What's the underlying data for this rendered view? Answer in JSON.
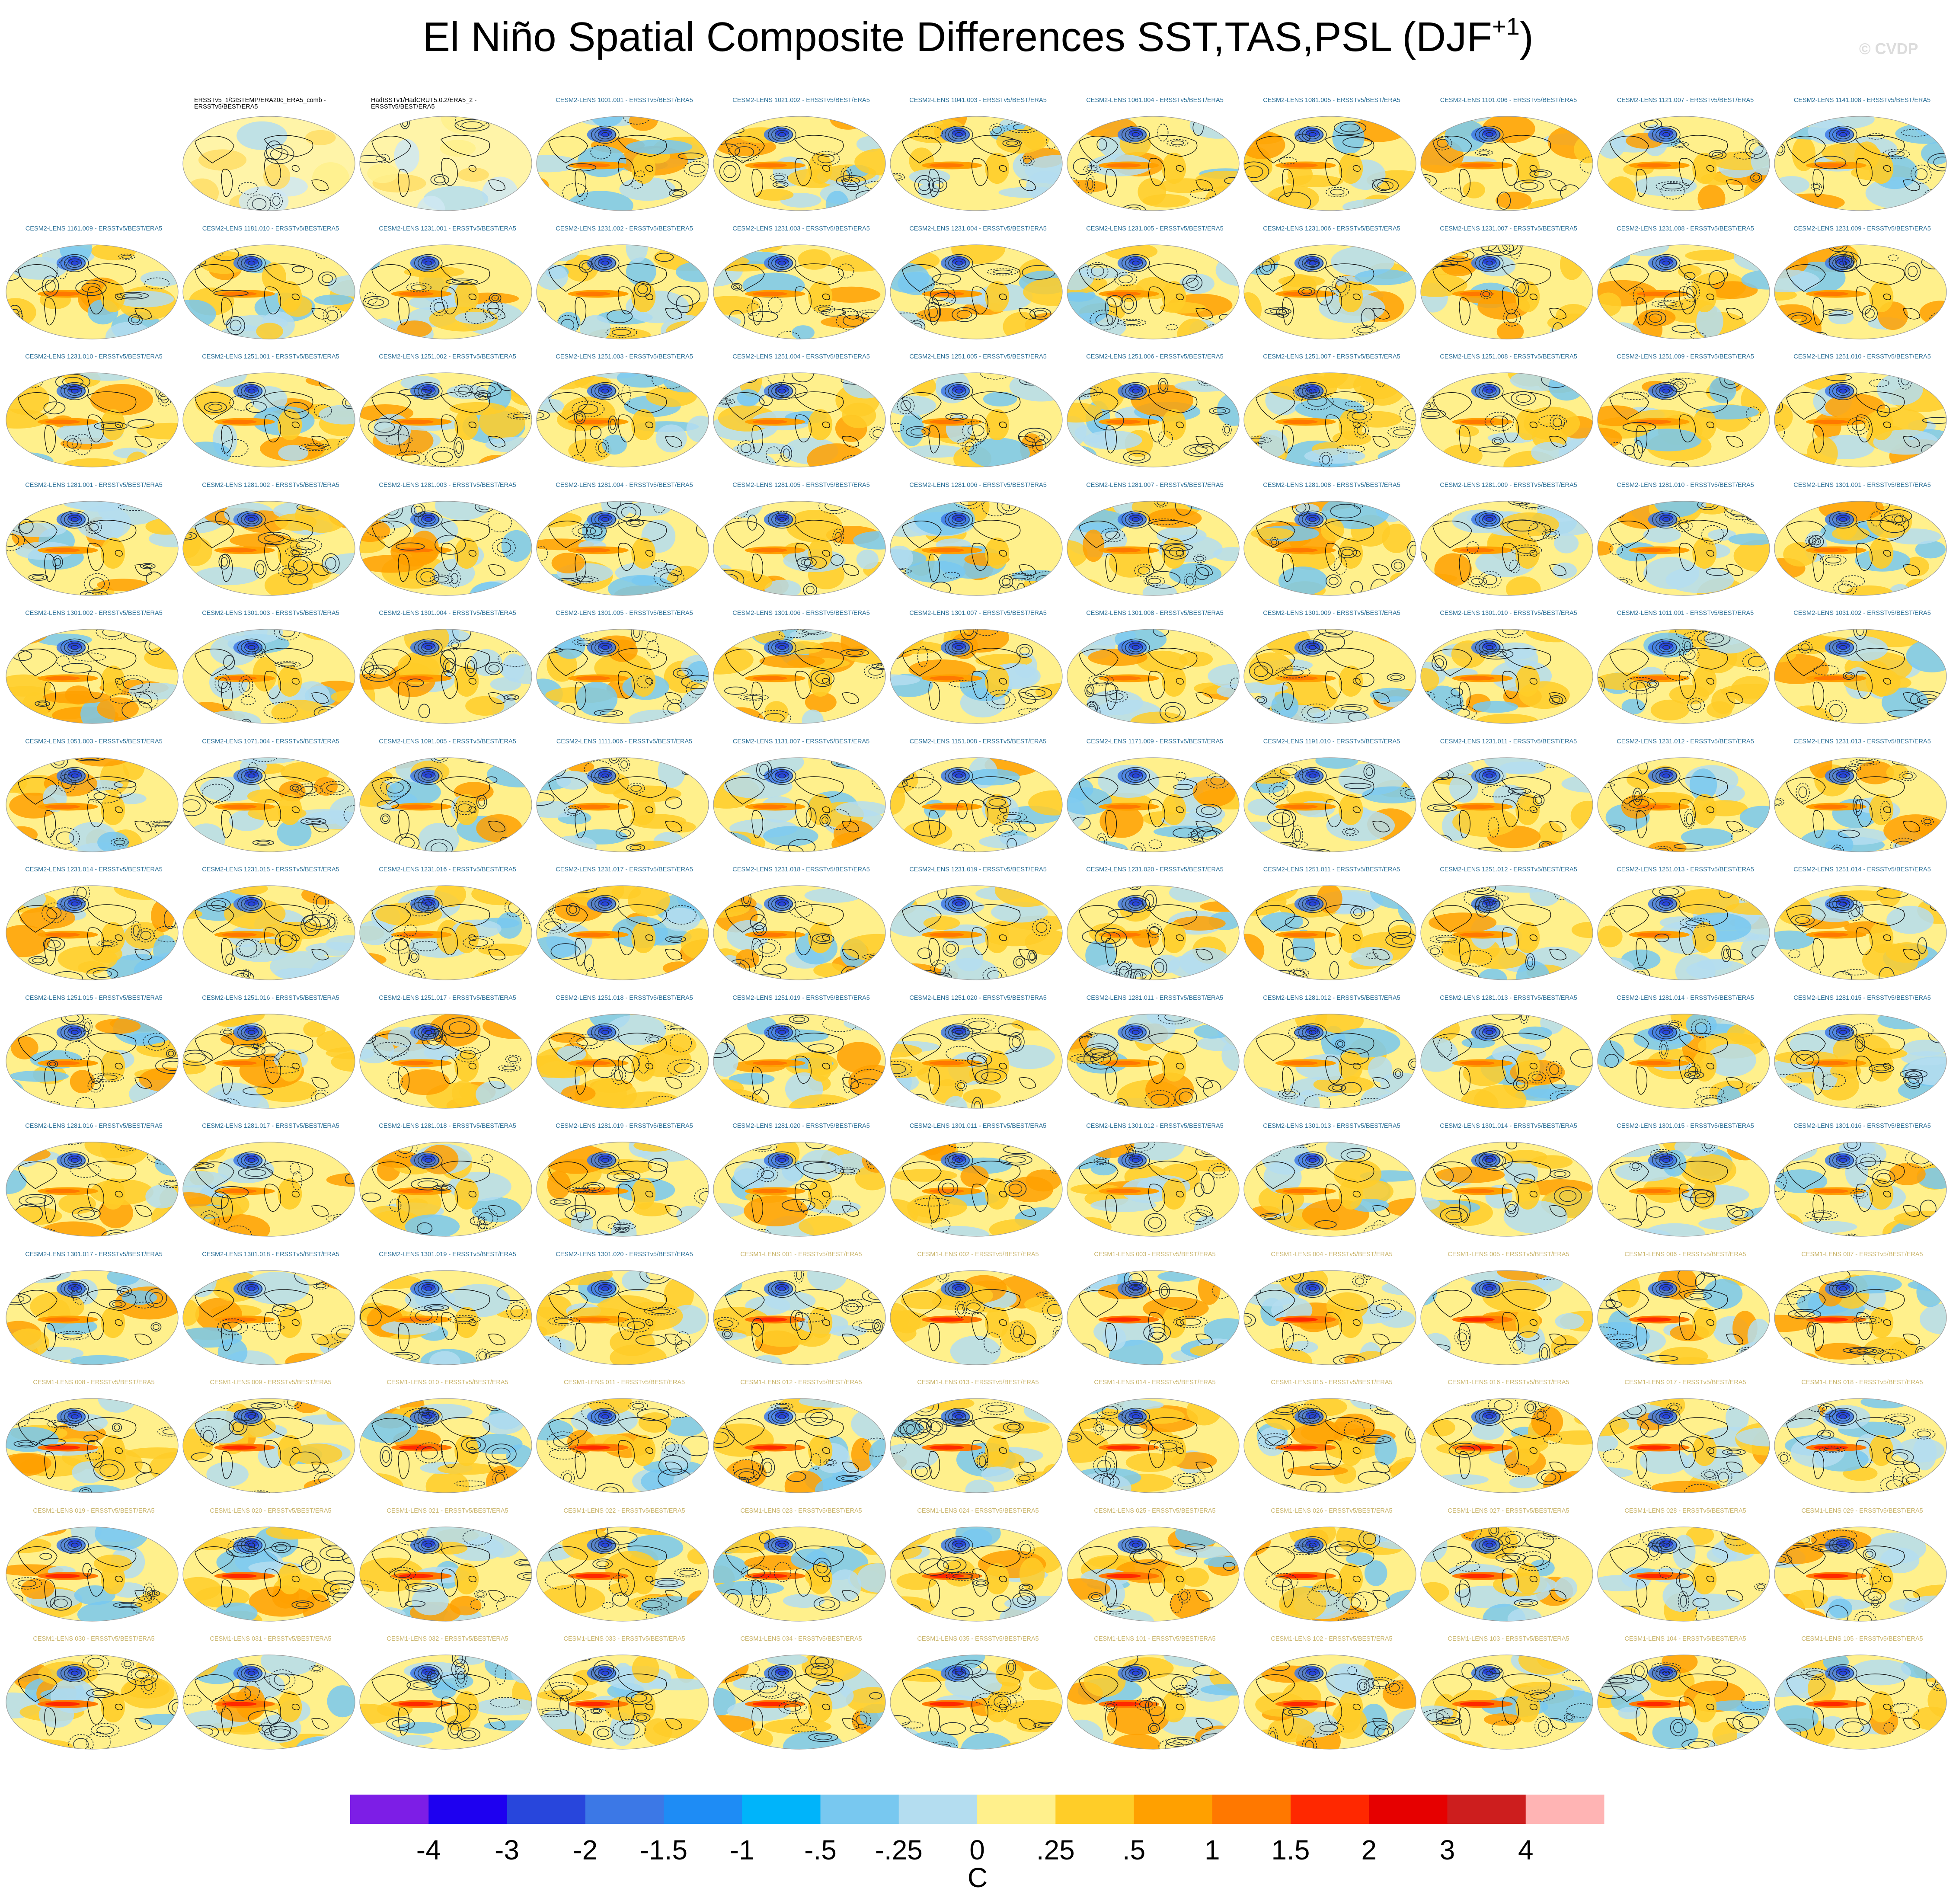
{
  "title": "El Niño Spatial Composite Differences SST,TAS,PSL (DJF",
  "title_superscript": "+1",
  "title_close": ")",
  "copyright": "© CVDP",
  "grid": {
    "columns": 11,
    "rows": 13
  },
  "colors": {
    "cesm2_label": "#2a6f97",
    "cesm1_label": "#c9b46a",
    "obs_label": "#000000",
    "land_outline": "#111111",
    "contour": "#1e2a36"
  },
  "chart_data": {
    "type": "heatmap",
    "description_note": "",
    "panels": [
      {
        "title": "",
        "group": "empty"
      },
      {
        "title": "ERSSTv5_1/GISTEMP/ERA20c_ERA5_comb - ERSSTv5/BEST/ERA5",
        "group": "obs"
      },
      {
        "title": "HadISSTv1/HadCRUT5.0.2/ERA5_2 - ERSSTv5/BEST/ERA5",
        "group": "obs"
      },
      {
        "title": "CESM2-LENS 1001.001 - ERSSTv5/BEST/ERA5",
        "group": "cesm2"
      },
      {
        "title": "CESM2-LENS 1021.002 - ERSSTv5/BEST/ERA5",
        "group": "cesm2"
      },
      {
        "title": "CESM2-LENS 1041.003 - ERSSTv5/BEST/ERA5",
        "group": "cesm2"
      },
      {
        "title": "CESM2-LENS 1061.004 - ERSSTv5/BEST/ERA5",
        "group": "cesm2"
      },
      {
        "title": "CESM2-LENS 1081.005 - ERSSTv5/BEST/ERA5",
        "group": "cesm2"
      },
      {
        "title": "CESM2-LENS 1101.006 - ERSSTv5/BEST/ERA5",
        "group": "cesm2"
      },
      {
        "title": "CESM2-LENS 1121.007 - ERSSTv5/BEST/ERA5",
        "group": "cesm2"
      },
      {
        "title": "CESM2-LENS 1141.008 - ERSSTv5/BEST/ERA5",
        "group": "cesm2"
      },
      {
        "title": "CESM2-LENS 1161.009 - ERSSTv5/BEST/ERA5",
        "group": "cesm2"
      },
      {
        "title": "CESM2-LENS 1181.010 - ERSSTv5/BEST/ERA5",
        "group": "cesm2"
      },
      {
        "title": "CESM2-LENS 1231.001 - ERSSTv5/BEST/ERA5",
        "group": "cesm2"
      },
      {
        "title": "CESM2-LENS 1231.002 - ERSSTv5/BEST/ERA5",
        "group": "cesm2"
      },
      {
        "title": "CESM2-LENS 1231.003 - ERSSTv5/BEST/ERA5",
        "group": "cesm2"
      },
      {
        "title": "CESM2-LENS 1231.004 - ERSSTv5/BEST/ERA5",
        "group": "cesm2"
      },
      {
        "title": "CESM2-LENS 1231.005 - ERSSTv5/BEST/ERA5",
        "group": "cesm2"
      },
      {
        "title": "CESM2-LENS 1231.006 - ERSSTv5/BEST/ERA5",
        "group": "cesm2"
      },
      {
        "title": "CESM2-LENS 1231.007 - ERSSTv5/BEST/ERA5",
        "group": "cesm2"
      },
      {
        "title": "CESM2-LENS 1231.008 - ERSSTv5/BEST/ERA5",
        "group": "cesm2"
      },
      {
        "title": "CESM2-LENS 1231.009 - ERSSTv5/BEST/ERA5",
        "group": "cesm2"
      },
      {
        "title": "CESM2-LENS 1231.010 - ERSSTv5/BEST/ERA5",
        "group": "cesm2"
      },
      {
        "title": "CESM2-LENS 1251.001 - ERSSTv5/BEST/ERA5",
        "group": "cesm2"
      },
      {
        "title": "CESM2-LENS 1251.002 - ERSSTv5/BEST/ERA5",
        "group": "cesm2"
      },
      {
        "title": "CESM2-LENS 1251.003 - ERSSTv5/BEST/ERA5",
        "group": "cesm2"
      },
      {
        "title": "CESM2-LENS 1251.004 - ERSSTv5/BEST/ERA5",
        "group": "cesm2"
      },
      {
        "title": "CESM2-LENS 1251.005 - ERSSTv5/BEST/ERA5",
        "group": "cesm2"
      },
      {
        "title": "CESM2-LENS 1251.006 - ERSSTv5/BEST/ERA5",
        "group": "cesm2"
      },
      {
        "title": "CESM2-LENS 1251.007 - ERSSTv5/BEST/ERA5",
        "group": "cesm2"
      },
      {
        "title": "CESM2-LENS 1251.008 - ERSSTv5/BEST/ERA5",
        "group": "cesm2"
      },
      {
        "title": "CESM2-LENS 1251.009 - ERSSTv5/BEST/ERA5",
        "group": "cesm2"
      },
      {
        "title": "CESM2-LENS 1251.010 - ERSSTv5/BEST/ERA5",
        "group": "cesm2"
      },
      {
        "title": "CESM2-LENS 1281.001 - ERSSTv5/BEST/ERA5",
        "group": "cesm2"
      },
      {
        "title": "CESM2-LENS 1281.002 - ERSSTv5/BEST/ERA5",
        "group": "cesm2"
      },
      {
        "title": "CESM2-LENS 1281.003 - ERSSTv5/BEST/ERA5",
        "group": "cesm2"
      },
      {
        "title": "CESM2-LENS 1281.004 - ERSSTv5/BEST/ERA5",
        "group": "cesm2"
      },
      {
        "title": "CESM2-LENS 1281.005 - ERSSTv5/BEST/ERA5",
        "group": "cesm2"
      },
      {
        "title": "CESM2-LENS 1281.006 - ERSSTv5/BEST/ERA5",
        "group": "cesm2"
      },
      {
        "title": "CESM2-LENS 1281.007 - ERSSTv5/BEST/ERA5",
        "group": "cesm2"
      },
      {
        "title": "CESM2-LENS 1281.008 - ERSSTv5/BEST/ERA5",
        "group": "cesm2"
      },
      {
        "title": "CESM2-LENS 1281.009 - ERSSTv5/BEST/ERA5",
        "group": "cesm2"
      },
      {
        "title": "CESM2-LENS 1281.010 - ERSSTv5/BEST/ERA5",
        "group": "cesm2"
      },
      {
        "title": "CESM2-LENS 1301.001 - ERSSTv5/BEST/ERA5",
        "group": "cesm2"
      },
      {
        "title": "CESM2-LENS 1301.002 - ERSSTv5/BEST/ERA5",
        "group": "cesm2"
      },
      {
        "title": "CESM2-LENS 1301.003 - ERSSTv5/BEST/ERA5",
        "group": "cesm2"
      },
      {
        "title": "CESM2-LENS 1301.004 - ERSSTv5/BEST/ERA5",
        "group": "cesm2"
      },
      {
        "title": "CESM2-LENS 1301.005 - ERSSTv5/BEST/ERA5",
        "group": "cesm2"
      },
      {
        "title": "CESM2-LENS 1301.006 - ERSSTv5/BEST/ERA5",
        "group": "cesm2"
      },
      {
        "title": "CESM2-LENS 1301.007 - ERSSTv5/BEST/ERA5",
        "group": "cesm2"
      },
      {
        "title": "CESM2-LENS 1301.008 - ERSSTv5/BEST/ERA5",
        "group": "cesm2"
      },
      {
        "title": "CESM2-LENS 1301.009 - ERSSTv5/BEST/ERA5",
        "group": "cesm2"
      },
      {
        "title": "CESM2-LENS 1301.010 - ERSSTv5/BEST/ERA5",
        "group": "cesm2"
      },
      {
        "title": "CESM2-LENS 1011.001 - ERSSTv5/BEST/ERA5",
        "group": "cesm2"
      },
      {
        "title": "CESM2-LENS 1031.002 - ERSSTv5/BEST/ERA5",
        "group": "cesm2"
      },
      {
        "title": "CESM2-LENS 1051.003 - ERSSTv5/BEST/ERA5",
        "group": "cesm2"
      },
      {
        "title": "CESM2-LENS 1071.004 - ERSSTv5/BEST/ERA5",
        "group": "cesm2"
      },
      {
        "title": "CESM2-LENS 1091.005 - ERSSTv5/BEST/ERA5",
        "group": "cesm2"
      },
      {
        "title": "CESM2-LENS 1111.006 - ERSSTv5/BEST/ERA5",
        "group": "cesm2"
      },
      {
        "title": "CESM2-LENS 1131.007 - ERSSTv5/BEST/ERA5",
        "group": "cesm2"
      },
      {
        "title": "CESM2-LENS 1151.008 - ERSSTv5/BEST/ERA5",
        "group": "cesm2"
      },
      {
        "title": "CESM2-LENS 1171.009 - ERSSTv5/BEST/ERA5",
        "group": "cesm2"
      },
      {
        "title": "CESM2-LENS 1191.010 - ERSSTv5/BEST/ERA5",
        "group": "cesm2"
      },
      {
        "title": "CESM2-LENS 1231.011 - ERSSTv5/BEST/ERA5",
        "group": "cesm2"
      },
      {
        "title": "CESM2-LENS 1231.012 - ERSSTv5/BEST/ERA5",
        "group": "cesm2"
      },
      {
        "title": "CESM2-LENS 1231.013 - ERSSTv5/BEST/ERA5",
        "group": "cesm2"
      },
      {
        "title": "CESM2-LENS 1231.014 - ERSSTv5/BEST/ERA5",
        "group": "cesm2"
      },
      {
        "title": "CESM2-LENS 1231.015 - ERSSTv5/BEST/ERA5",
        "group": "cesm2"
      },
      {
        "title": "CESM2-LENS 1231.016 - ERSSTv5/BEST/ERA5",
        "group": "cesm2"
      },
      {
        "title": "CESM2-LENS 1231.017 - ERSSTv5/BEST/ERA5",
        "group": "cesm2"
      },
      {
        "title": "CESM2-LENS 1231.018 - ERSSTv5/BEST/ERA5",
        "group": "cesm2"
      },
      {
        "title": "CESM2-LENS 1231.019 - ERSSTv5/BEST/ERA5",
        "group": "cesm2"
      },
      {
        "title": "CESM2-LENS 1231.020 - ERSSTv5/BEST/ERA5",
        "group": "cesm2"
      },
      {
        "title": "CESM2-LENS 1251.011 - ERSSTv5/BEST/ERA5",
        "group": "cesm2"
      },
      {
        "title": "CESM2-LENS 1251.012 - ERSSTv5/BEST/ERA5",
        "group": "cesm2"
      },
      {
        "title": "CESM2-LENS 1251.013 - ERSSTv5/BEST/ERA5",
        "group": "cesm2"
      },
      {
        "title": "CESM2-LENS 1251.014 - ERSSTv5/BEST/ERA5",
        "group": "cesm2"
      },
      {
        "title": "CESM2-LENS 1251.015 - ERSSTv5/BEST/ERA5",
        "group": "cesm2"
      },
      {
        "title": "CESM2-LENS 1251.016 - ERSSTv5/BEST/ERA5",
        "group": "cesm2"
      },
      {
        "title": "CESM2-LENS 1251.017 - ERSSTv5/BEST/ERA5",
        "group": "cesm2"
      },
      {
        "title": "CESM2-LENS 1251.018 - ERSSTv5/BEST/ERA5",
        "group": "cesm2"
      },
      {
        "title": "CESM2-LENS 1251.019 - ERSSTv5/BEST/ERA5",
        "group": "cesm2"
      },
      {
        "title": "CESM2-LENS 1251.020 - ERSSTv5/BEST/ERA5",
        "group": "cesm2"
      },
      {
        "title": "CESM2-LENS 1281.011 - ERSSTv5/BEST/ERA5",
        "group": "cesm2"
      },
      {
        "title": "CESM2-LENS 1281.012 - ERSSTv5/BEST/ERA5",
        "group": "cesm2"
      },
      {
        "title": "CESM2-LENS 1281.013 - ERSSTv5/BEST/ERA5",
        "group": "cesm2"
      },
      {
        "title": "CESM2-LENS 1281.014 - ERSSTv5/BEST/ERA5",
        "group": "cesm2"
      },
      {
        "title": "CESM2-LENS 1281.015 - ERSSTv5/BEST/ERA5",
        "group": "cesm2"
      },
      {
        "title": "CESM2-LENS 1281.016 - ERSSTv5/BEST/ERA5",
        "group": "cesm2"
      },
      {
        "title": "CESM2-LENS 1281.017 - ERSSTv5/BEST/ERA5",
        "group": "cesm2"
      },
      {
        "title": "CESM2-LENS 1281.018 - ERSSTv5/BEST/ERA5",
        "group": "cesm2"
      },
      {
        "title": "CESM2-LENS 1281.019 - ERSSTv5/BEST/ERA5",
        "group": "cesm2"
      },
      {
        "title": "CESM2-LENS 1281.020 - ERSSTv5/BEST/ERA5",
        "group": "cesm2"
      },
      {
        "title": "CESM2-LENS 1301.011 - ERSSTv5/BEST/ERA5",
        "group": "cesm2"
      },
      {
        "title": "CESM2-LENS 1301.012 - ERSSTv5/BEST/ERA5",
        "group": "cesm2"
      },
      {
        "title": "CESM2-LENS 1301.013 - ERSSTv5/BEST/ERA5",
        "group": "cesm2"
      },
      {
        "title": "CESM2-LENS 1301.014 - ERSSTv5/BEST/ERA5",
        "group": "cesm2"
      },
      {
        "title": "CESM2-LENS 1301.015 - ERSSTv5/BEST/ERA5",
        "group": "cesm2"
      },
      {
        "title": "CESM2-LENS 1301.016 - ERSSTv5/BEST/ERA5",
        "group": "cesm2"
      },
      {
        "title": "CESM2-LENS 1301.017 - ERSSTv5/BEST/ERA5",
        "group": "cesm2"
      },
      {
        "title": "CESM2-LENS 1301.018 - ERSSTv5/BEST/ERA5",
        "group": "cesm2"
      },
      {
        "title": "CESM2-LENS 1301.019 - ERSSTv5/BEST/ERA5",
        "group": "cesm2"
      },
      {
        "title": "CESM2-LENS 1301.020 - ERSSTv5/BEST/ERA5",
        "group": "cesm2"
      },
      {
        "title": "CESM1-LENS 001 - ERSSTv5/BEST/ERA5",
        "group": "cesm1"
      },
      {
        "title": "CESM1-LENS 002 - ERSSTv5/BEST/ERA5",
        "group": "cesm1"
      },
      {
        "title": "CESM1-LENS 003 - ERSSTv5/BEST/ERA5",
        "group": "cesm1"
      },
      {
        "title": "CESM1-LENS 004 - ERSSTv5/BEST/ERA5",
        "group": "cesm1"
      },
      {
        "title": "CESM1-LENS 005 - ERSSTv5/BEST/ERA5",
        "group": "cesm1"
      },
      {
        "title": "CESM1-LENS 006 - ERSSTv5/BEST/ERA5",
        "group": "cesm1"
      },
      {
        "title": "CESM1-LENS 007 - ERSSTv5/BEST/ERA5",
        "group": "cesm1"
      },
      {
        "title": "CESM1-LENS 008 - ERSSTv5/BEST/ERA5",
        "group": "cesm1"
      },
      {
        "title": "CESM1-LENS 009 - ERSSTv5/BEST/ERA5",
        "group": "cesm1"
      },
      {
        "title": "CESM1-LENS 010 - ERSSTv5/BEST/ERA5",
        "group": "cesm1"
      },
      {
        "title": "CESM1-LENS 011 - ERSSTv5/BEST/ERA5",
        "group": "cesm1"
      },
      {
        "title": "CESM1-LENS 012 - ERSSTv5/BEST/ERA5",
        "group": "cesm1"
      },
      {
        "title": "CESM1-LENS 013 - ERSSTv5/BEST/ERA5",
        "group": "cesm1"
      },
      {
        "title": "CESM1-LENS 014 - ERSSTv5/BEST/ERA5",
        "group": "cesm1"
      },
      {
        "title": "CESM1-LENS 015 - ERSSTv5/BEST/ERA5",
        "group": "cesm1"
      },
      {
        "title": "CESM1-LENS 016 - ERSSTv5/BEST/ERA5",
        "group": "cesm1"
      },
      {
        "title": "CESM1-LENS 017 - ERSSTv5/BEST/ERA5",
        "group": "cesm1"
      },
      {
        "title": "CESM1-LENS 018 - ERSSTv5/BEST/ERA5",
        "group": "cesm1"
      },
      {
        "title": "CESM1-LENS 019 - ERSSTv5/BEST/ERA5",
        "group": "cesm1"
      },
      {
        "title": "CESM1-LENS 020 - ERSSTv5/BEST/ERA5",
        "group": "cesm1"
      },
      {
        "title": "CESM1-LENS 021 - ERSSTv5/BEST/ERA5",
        "group": "cesm1"
      },
      {
        "title": "CESM1-LENS 022 - ERSSTv5/BEST/ERA5",
        "group": "cesm1"
      },
      {
        "title": "CESM1-LENS 023 - ERSSTv5/BEST/ERA5",
        "group": "cesm1"
      },
      {
        "title": "CESM1-LENS 024 - ERSSTv5/BEST/ERA5",
        "group": "cesm1"
      },
      {
        "title": "CESM1-LENS 025 - ERSSTv5/BEST/ERA5",
        "group": "cesm1"
      },
      {
        "title": "CESM1-LENS 026 - ERSSTv5/BEST/ERA5",
        "group": "cesm1"
      },
      {
        "title": "CESM1-LENS 027 - ERSSTv5/BEST/ERA5",
        "group": "cesm1"
      },
      {
        "title": "CESM1-LENS 028 - ERSSTv5/BEST/ERA5",
        "group": "cesm1"
      },
      {
        "title": "CESM1-LENS 029 - ERSSTv5/BEST/ERA5",
        "group": "cesm1"
      },
      {
        "title": "CESM1-LENS 030 - ERSSTv5/BEST/ERA5",
        "group": "cesm1"
      },
      {
        "title": "CESM1-LENS 031 - ERSSTv5/BEST/ERA5",
        "group": "cesm1"
      },
      {
        "title": "CESM1-LENS 032 - ERSSTv5/BEST/ERA5",
        "group": "cesm1"
      },
      {
        "title": "CESM1-LENS 033 - ERSSTv5/BEST/ERA5",
        "group": "cesm1"
      },
      {
        "title": "CESM1-LENS 034 - ERSSTv5/BEST/ERA5",
        "group": "cesm1"
      },
      {
        "title": "CESM1-LENS 035 - ERSSTv5/BEST/ERA5",
        "group": "cesm1"
      },
      {
        "title": "CESM1-LENS 101 - ERSSTv5/BEST/ERA5",
        "group": "cesm1"
      },
      {
        "title": "CESM1-LENS 102 - ERSSTv5/BEST/ERA5",
        "group": "cesm1"
      },
      {
        "title": "CESM1-LENS 103 - ERSSTv5/BEST/ERA5",
        "group": "cesm1"
      },
      {
        "title": "CESM1-LENS 104 - ERSSTv5/BEST/ERA5",
        "group": "cesm1"
      },
      {
        "title": "CESM1-LENS 105 - ERSSTv5/BEST/ERA5",
        "group": "cesm1"
      }
    ],
    "colorbar": {
      "unit": "C",
      "tick_labels": [
        "-4",
        "-3",
        "-2",
        "-1.5",
        "-1",
        "-.5",
        "-.25",
        "0",
        ".25",
        ".5",
        "1",
        "1.5",
        "2",
        "3",
        "4"
      ],
      "colors": [
        "#7d1ee6",
        "#1e00f0",
        "#2846dc",
        "#3c78e6",
        "#1e8cf5",
        "#00b4fa",
        "#78c8f0",
        "#b4ddf0",
        "#fff08c",
        "#ffcd28",
        "#ffa000",
        "#ff7800",
        "#ff2800",
        "#e60000",
        "#cd1e1e",
        "#ffb4b4"
      ]
    }
  }
}
